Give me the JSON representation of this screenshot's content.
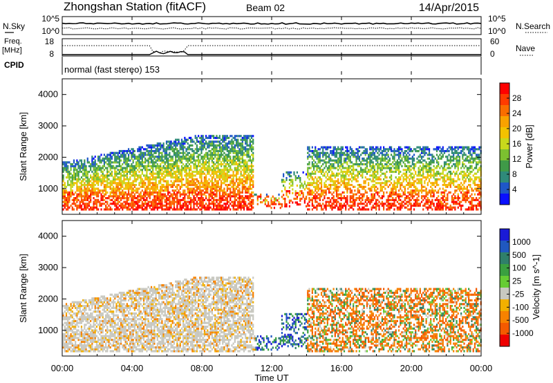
{
  "header": {
    "station": "Zhongshan Station (fitACF)",
    "beam": "Beam 02",
    "date": "14/Apr/2015"
  },
  "top_panels": {
    "nsky_label": "N.Sky",
    "nsky_ticks": [
      "10^5",
      "10^0"
    ],
    "nsearch_label": "N.Search",
    "nsearch_ticks": [
      "10^5",
      "10^0"
    ],
    "freq_label": "Freq.",
    "freq_unit": "[MHz]",
    "freq_ticks": [
      "18",
      "8"
    ],
    "nave_label": "Nave",
    "nave_ticks": [
      "60",
      "0"
    ],
    "cpid_label": "CPID",
    "cpid_text": "normal (fast stereo) 153"
  },
  "x_axis": {
    "label": "Time UT",
    "ticks": [
      "00:00",
      "04:00",
      "08:00",
      "12:00",
      "16:00",
      "20:00",
      "00:00"
    ]
  },
  "chart_data": [
    {
      "type": "heatmap",
      "panel": "power",
      "ylabel": "Slant Range [km]",
      "y_ticks": [
        1000,
        2000,
        3000,
        4000
      ],
      "ylim": [
        180,
        4500
      ],
      "xlim_hours": [
        0,
        24
      ],
      "colorbar_label": "Power [dB]",
      "colorbar_ticks": [
        "28",
        "24",
        "20",
        "16",
        "12",
        "8",
        "4"
      ],
      "colors": [
        "#ff0000",
        "#ff3b00",
        "#f96d00",
        "#f9a200",
        "#f2c200",
        "#c8d81c",
        "#7cc030",
        "#3f9a48",
        "#2f8a7a",
        "#1f57c8",
        "#0a10ff"
      ]
    },
    {
      "type": "heatmap",
      "panel": "velocity",
      "ylabel": "Slant Range [km]",
      "y_ticks": [
        1000,
        2000,
        3000,
        4000
      ],
      "ylim": [
        180,
        4500
      ],
      "xlim_hours": [
        0,
        24
      ],
      "colorbar_label": "Velocity [m s^-1]",
      "colorbar_ticks": [
        "1000",
        "500",
        "100",
        "25",
        "-25",
        "-100",
        "-500",
        "-1000"
      ],
      "colors": [
        "#1a1ad6",
        "#2058c0",
        "#2f7f6a",
        "#3aa040",
        "#66cc33",
        "#c8c8c0",
        "#f2b000",
        "#f78200",
        "#f45a00",
        "#ee0000"
      ]
    }
  ]
}
